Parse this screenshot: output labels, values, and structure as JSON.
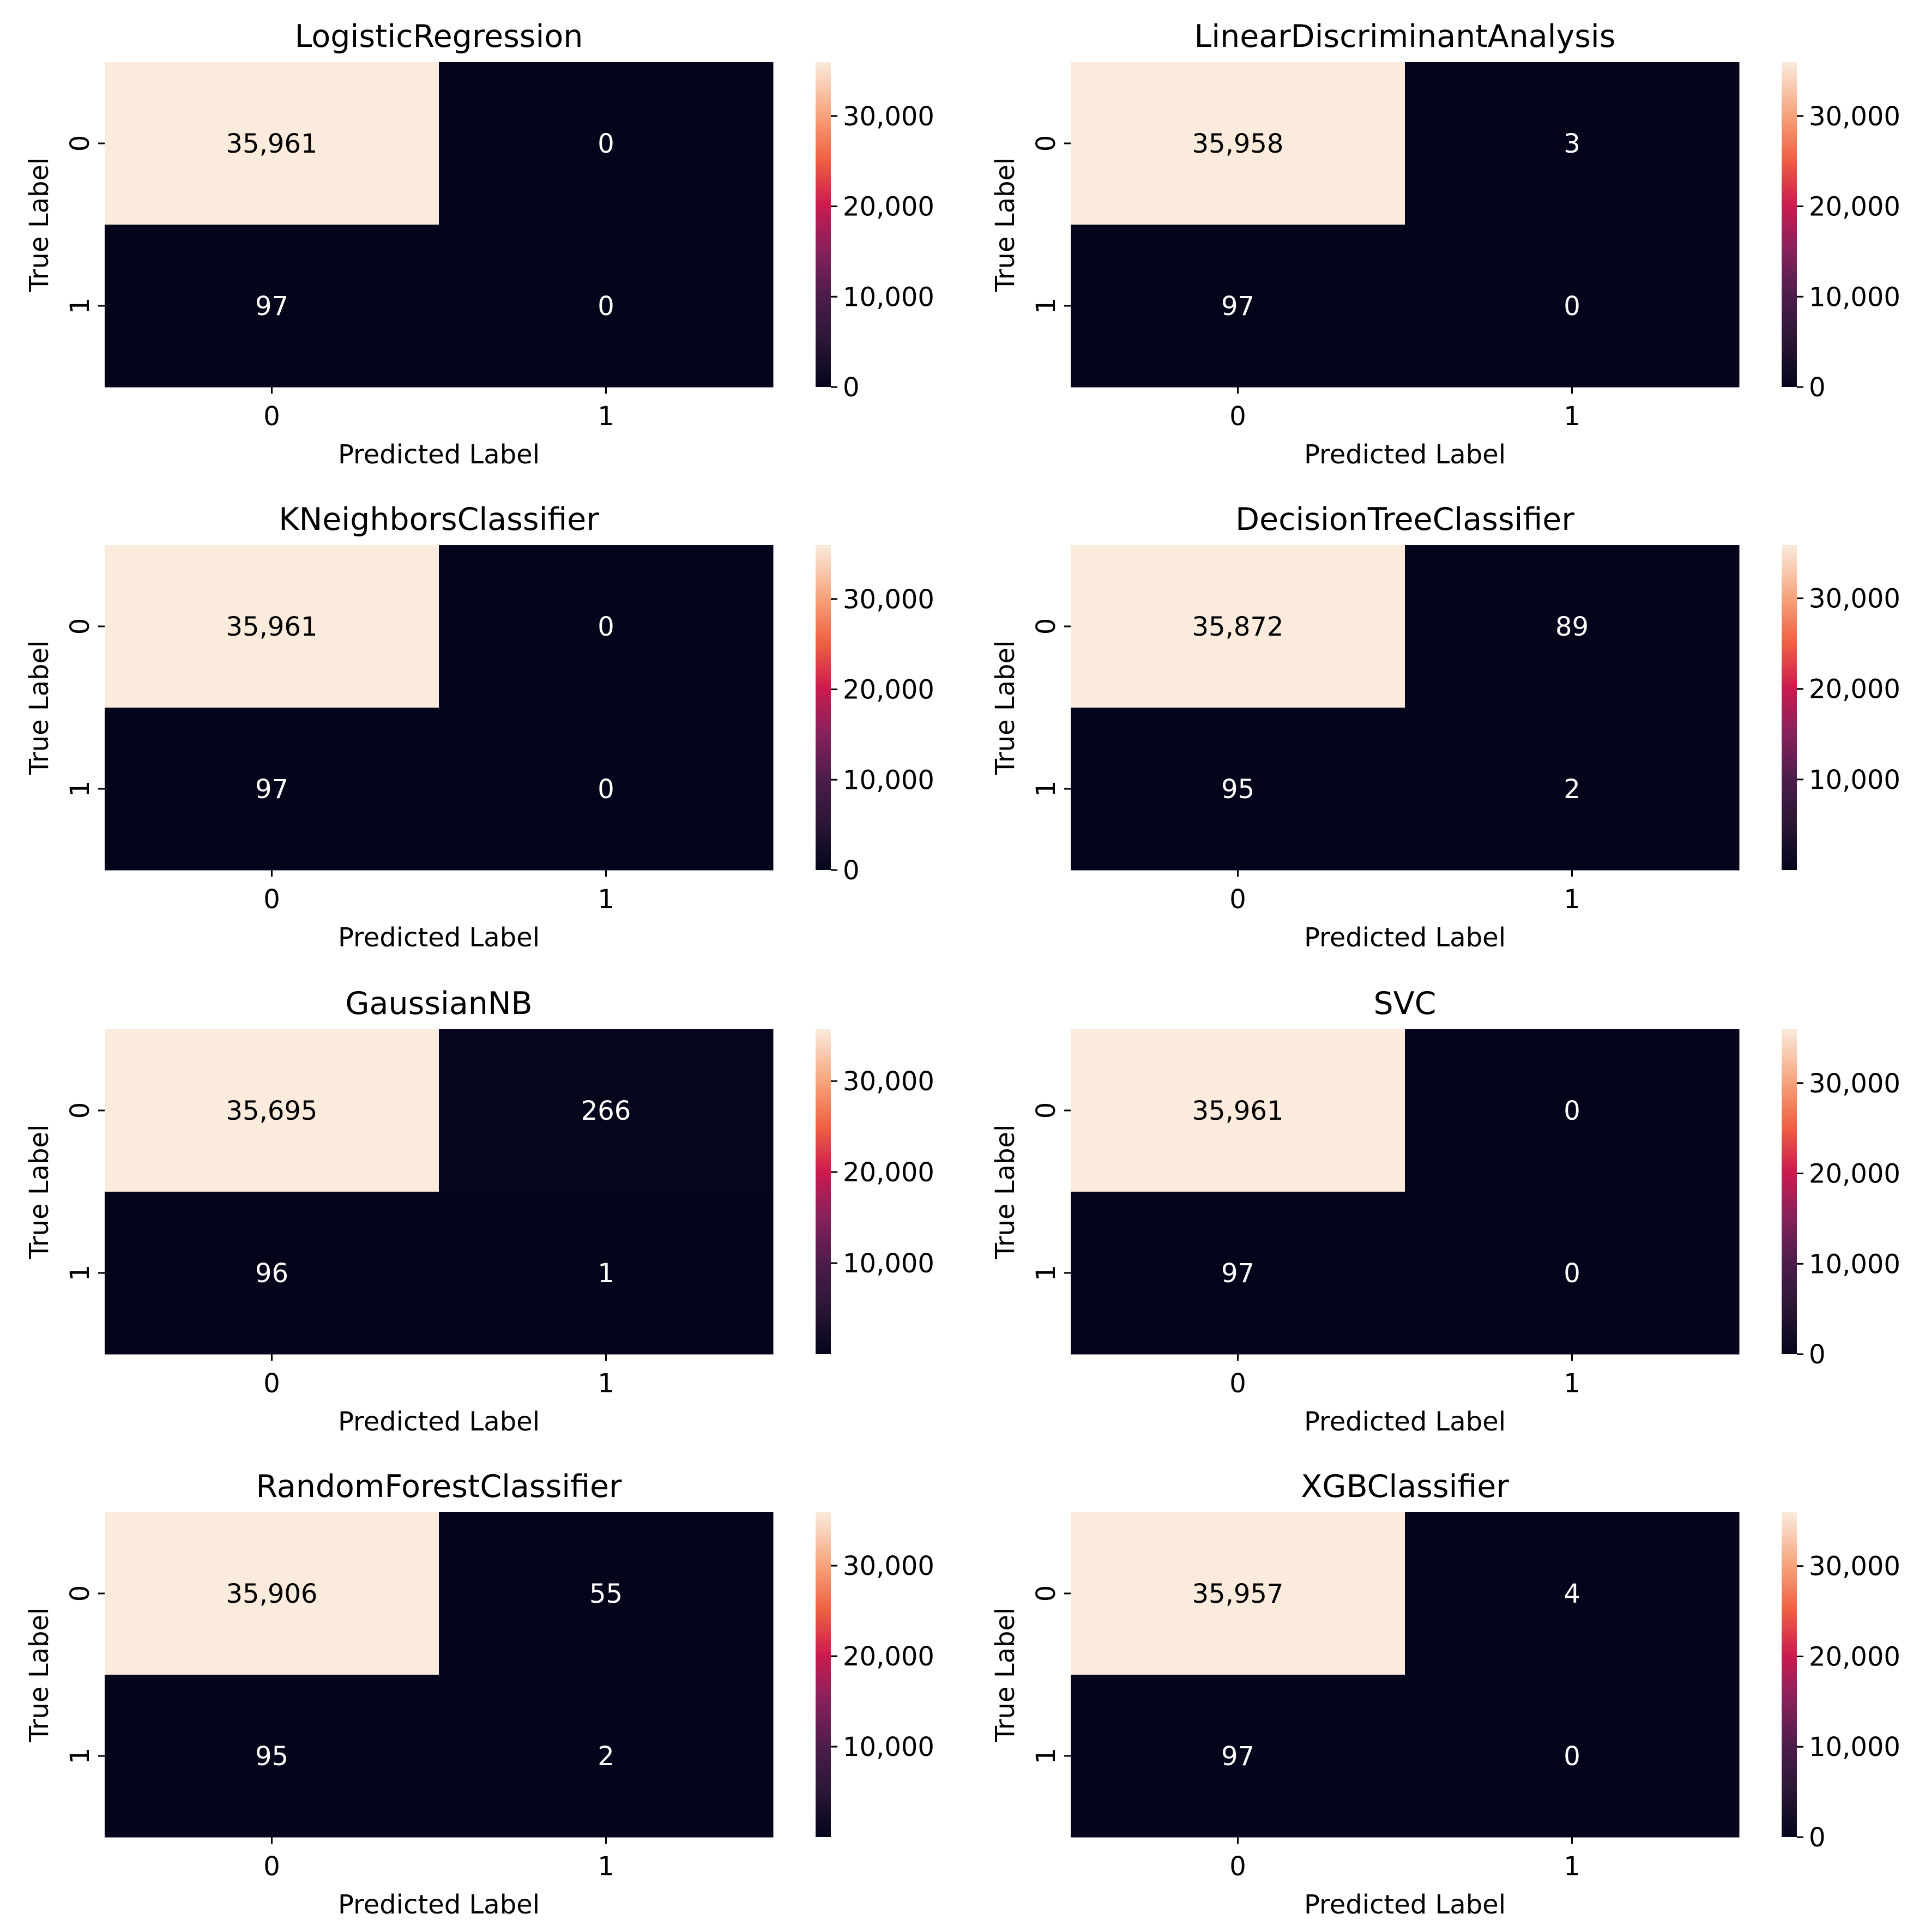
{
  "chart_data": [
    {
      "type": "heatmap",
      "title": "LogisticRegression",
      "xlabel": "Predicted Label",
      "ylabel": "True Label",
      "x_tick_labels": [
        "0",
        "1"
      ],
      "y_tick_labels": [
        "0",
        "1"
      ],
      "cells": [
        [
          "35,961",
          "0"
        ],
        [
          "97",
          "0"
        ]
      ],
      "values": [
        [
          35961,
          0
        ],
        [
          97,
          0
        ]
      ],
      "colorbar": {
        "vmin": 0,
        "vmax": 35961,
        "ticks": [
          0,
          10000,
          20000,
          30000
        ],
        "tick_labels": [
          "0",
          "10,000",
          "20,000",
          "30,000"
        ]
      }
    },
    {
      "type": "heatmap",
      "title": "LinearDiscriminantAnalysis",
      "xlabel": "Predicted Label",
      "ylabel": "True Label",
      "x_tick_labels": [
        "0",
        "1"
      ],
      "y_tick_labels": [
        "0",
        "1"
      ],
      "cells": [
        [
          "35,958",
          "3"
        ],
        [
          "97",
          "0"
        ]
      ],
      "values": [
        [
          35958,
          3
        ],
        [
          97,
          0
        ]
      ],
      "colorbar": {
        "vmin": 0,
        "vmax": 35958,
        "ticks": [
          0,
          10000,
          20000,
          30000
        ],
        "tick_labels": [
          "0",
          "10,000",
          "20,000",
          "30,000"
        ]
      }
    },
    {
      "type": "heatmap",
      "title": "KNeighborsClassifier",
      "xlabel": "Predicted Label",
      "ylabel": "True Label",
      "x_tick_labels": [
        "0",
        "1"
      ],
      "y_tick_labels": [
        "0",
        "1"
      ],
      "cells": [
        [
          "35,961",
          "0"
        ],
        [
          "97",
          "0"
        ]
      ],
      "values": [
        [
          35961,
          0
        ],
        [
          97,
          0
        ]
      ],
      "colorbar": {
        "vmin": 0,
        "vmax": 35961,
        "ticks": [
          0,
          10000,
          20000,
          30000
        ],
        "tick_labels": [
          "0",
          "10,000",
          "20,000",
          "30,000"
        ]
      }
    },
    {
      "type": "heatmap",
      "title": "DecisionTreeClassifier",
      "xlabel": "Predicted Label",
      "ylabel": "True Label",
      "x_tick_labels": [
        "0",
        "1"
      ],
      "y_tick_labels": [
        "0",
        "1"
      ],
      "cells": [
        [
          "35,872",
          "89"
        ],
        [
          "95",
          "2"
        ]
      ],
      "values": [
        [
          35872,
          89
        ],
        [
          95,
          2
        ]
      ],
      "colorbar": {
        "vmin": 2,
        "vmax": 35872,
        "ticks": [
          10000,
          20000,
          30000
        ],
        "tick_labels": [
          "10,000",
          "20,000",
          "30,000"
        ]
      }
    },
    {
      "type": "heatmap",
      "title": "GaussianNB",
      "xlabel": "Predicted Label",
      "ylabel": "True Label",
      "x_tick_labels": [
        "0",
        "1"
      ],
      "y_tick_labels": [
        "0",
        "1"
      ],
      "cells": [
        [
          "35,695",
          "266"
        ],
        [
          "96",
          "1"
        ]
      ],
      "values": [
        [
          35695,
          266
        ],
        [
          96,
          1
        ]
      ],
      "colorbar": {
        "vmin": 1,
        "vmax": 35695,
        "ticks": [
          10000,
          20000,
          30000
        ],
        "tick_labels": [
          "10,000",
          "20,000",
          "30,000"
        ]
      }
    },
    {
      "type": "heatmap",
      "title": "SVC",
      "xlabel": "Predicted Label",
      "ylabel": "True Label",
      "x_tick_labels": [
        "0",
        "1"
      ],
      "y_tick_labels": [
        "0",
        "1"
      ],
      "cells": [
        [
          "35,961",
          "0"
        ],
        [
          "97",
          "0"
        ]
      ],
      "values": [
        [
          35961,
          0
        ],
        [
          97,
          0
        ]
      ],
      "colorbar": {
        "vmin": 0,
        "vmax": 35961,
        "ticks": [
          0,
          10000,
          20000,
          30000
        ],
        "tick_labels": [
          "0",
          "10,000",
          "20,000",
          "30,000"
        ]
      }
    },
    {
      "type": "heatmap",
      "title": "RandomForestClassifier",
      "xlabel": "Predicted Label",
      "ylabel": "True Label",
      "x_tick_labels": [
        "0",
        "1"
      ],
      "y_tick_labels": [
        "0",
        "1"
      ],
      "cells": [
        [
          "35,906",
          "55"
        ],
        [
          "95",
          "2"
        ]
      ],
      "values": [
        [
          35906,
          55
        ],
        [
          95,
          2
        ]
      ],
      "colorbar": {
        "vmin": 2,
        "vmax": 35906,
        "ticks": [
          10000,
          20000,
          30000
        ],
        "tick_labels": [
          "10,000",
          "20,000",
          "30,000"
        ]
      }
    },
    {
      "type": "heatmap",
      "title": "XGBClassifier",
      "xlabel": "Predicted Label",
      "ylabel": "True Label",
      "x_tick_labels": [
        "0",
        "1"
      ],
      "y_tick_labels": [
        "0",
        "1"
      ],
      "cells": [
        [
          "35,957",
          "4"
        ],
        [
          "97",
          "0"
        ]
      ],
      "values": [
        [
          35957,
          4
        ],
        [
          97,
          0
        ]
      ],
      "colorbar": {
        "vmin": 0,
        "vmax": 35957,
        "ticks": [
          0,
          10000,
          20000,
          30000
        ],
        "tick_labels": [
          "0",
          "10,000",
          "20,000",
          "30,000"
        ]
      }
    }
  ],
  "colors": {
    "colormap": "rocket",
    "low": "#03051a",
    "high": "#faebdd",
    "text_on_dark": "#ffffff",
    "text_on_light": "#000000"
  }
}
